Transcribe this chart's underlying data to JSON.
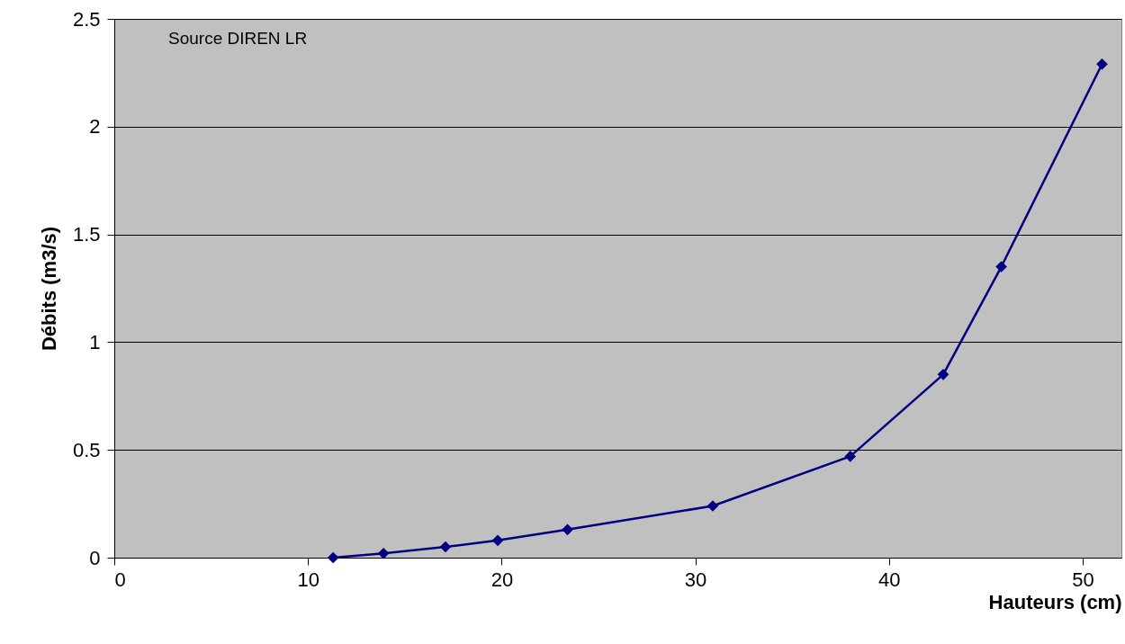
{
  "chart_data": {
    "type": "line",
    "xlabel": "Hauteurs (cm)",
    "ylabel": "Débits (m3/s)",
    "annotations": [
      "Source DIREN LR"
    ],
    "x": [
      11.3,
      13.9,
      17.1,
      19.8,
      23.4,
      30.9,
      38.0,
      42.8,
      45.8,
      51.0
    ],
    "series": [
      {
        "color": "#000080",
        "values": [
          0,
          0.02,
          0.05,
          0.08,
          0.13,
          0.24,
          0.47,
          0.85,
          1.35,
          2.29
        ]
      }
    ],
    "xlim": [
      0,
      52
    ],
    "xticks": [
      0,
      10,
      20,
      30,
      40,
      50
    ],
    "ylim": [
      0,
      2.5
    ],
    "yticks": [
      0,
      0.5,
      1,
      1.5,
      2,
      2.5
    ],
    "grid": "y",
    "marker": "diamond",
    "line_style": "solid"
  }
}
